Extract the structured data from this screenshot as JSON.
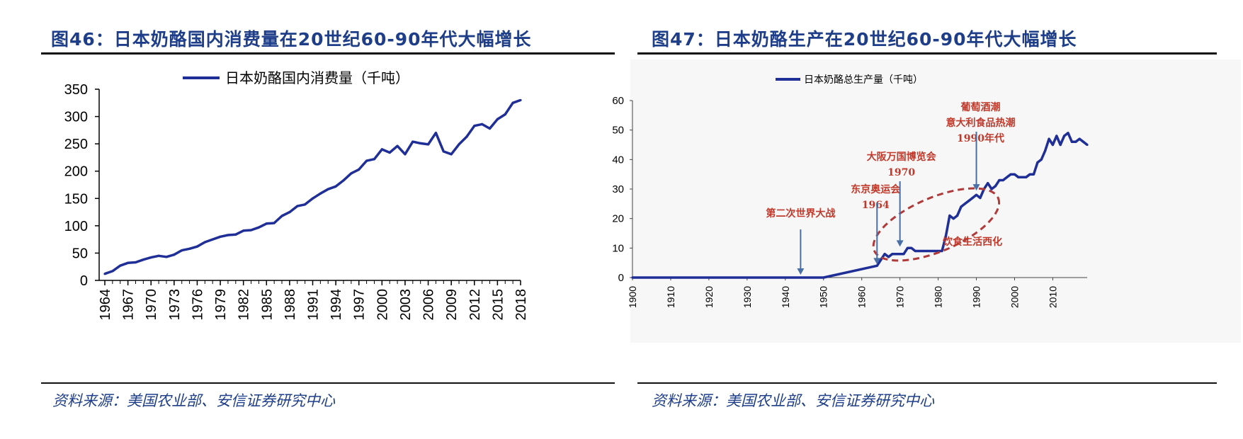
{
  "left": {
    "title": "图46：日本奶酪国内消费量在20世纪60-90年代大幅增长",
    "source": "资料来源：美国农业部、安信证券研究中心"
  },
  "right": {
    "title": "图47：日本奶酪生产在20世纪60-90年代大幅增长",
    "source": "资料来源：美国农业部、安信证券研究中心"
  },
  "chart_data": [
    {
      "type": "line",
      "legend": [
        "日本奶酪国内消费量（千吨）"
      ],
      "ylim": [
        0,
        350
      ],
      "yticks": [
        0,
        50,
        100,
        150,
        200,
        250,
        300,
        350
      ],
      "xtick_labels": [
        "1964",
        "1967",
        "1970",
        "1973",
        "1976",
        "1979",
        "1982",
        "1985",
        "1988",
        "1991",
        "1994",
        "1997",
        "2000",
        "2003",
        "2006",
        "2009",
        "2012",
        "2015",
        "2018"
      ],
      "grid": false,
      "color": "#1f2f97",
      "series": [
        {
          "name": "日本奶酪国内消费量（千吨）",
          "x": [
            1964,
            1965,
            1966,
            1967,
            1968,
            1969,
            1970,
            1971,
            1972,
            1973,
            1974,
            1975,
            1976,
            1977,
            1978,
            1979,
            1980,
            1981,
            1982,
            1983,
            1984,
            1985,
            1986,
            1987,
            1988,
            1989,
            1990,
            1991,
            1992,
            1993,
            1994,
            1995,
            1996,
            1997,
            1998,
            1999,
            2000,
            2001,
            2002,
            2003,
            2004,
            2005,
            2006,
            2007,
            2008,
            2009,
            2010,
            2011,
            2012,
            2013,
            2014,
            2015,
            2016,
            2017,
            2018
          ],
          "values": [
            12,
            17,
            27,
            32,
            33,
            38,
            42,
            45,
            43,
            47,
            55,
            58,
            62,
            70,
            75,
            80,
            83,
            84,
            91,
            92,
            97,
            104,
            105,
            118,
            125,
            136,
            139,
            150,
            159,
            167,
            172,
            183,
            196,
            203,
            219,
            222,
            240,
            234,
            246,
            231,
            254,
            251,
            249,
            270,
            236,
            231,
            249,
            263,
            283,
            286,
            278,
            295,
            304,
            325,
            330
          ]
        }
      ]
    },
    {
      "type": "line",
      "legend": [
        "日本奶酪总生产量（千吨）"
      ],
      "ylim": [
        0,
        60
      ],
      "yticks": [
        0,
        10,
        20,
        30,
        40,
        50,
        60
      ],
      "xtick_labels": [
        "1900",
        "1910",
        "1920",
        "1930",
        "1940",
        "1950",
        "1960",
        "1970",
        "1980",
        "1990",
        "2000",
        "2010"
      ],
      "grid": false,
      "color": "#1f2f97",
      "series": [
        {
          "name": "日本奶酪总生产量（千吨）",
          "x": [
            1900,
            1950,
            1964,
            1965,
            1966,
            1967,
            1968,
            1969,
            1970,
            1971,
            1972,
            1973,
            1974,
            1975,
            1976,
            1977,
            1978,
            1979,
            1980,
            1981,
            1982,
            1983,
            1984,
            1985,
            1986,
            1987,
            1988,
            1989,
            1990,
            1991,
            1992,
            1993,
            1994,
            1995,
            1996,
            1997,
            1998,
            1999,
            2000,
            2001,
            2002,
            2003,
            2004,
            2005,
            2006,
            2007,
            2008,
            2009,
            2010,
            2011,
            2012,
            2013,
            2014,
            2015,
            2016,
            2017,
            2018,
            2019
          ],
          "values": [
            0,
            0,
            4,
            6,
            8,
            7,
            8,
            8,
            8,
            8,
            10,
            10,
            9,
            9,
            9,
            9,
            9,
            9,
            9,
            9,
            14,
            21,
            20,
            21,
            24,
            25,
            26,
            27,
            28,
            27,
            30,
            32,
            30,
            31,
            33,
            33,
            34,
            35,
            35,
            34,
            34,
            34,
            35,
            35,
            39,
            40,
            43,
            47,
            45,
            48,
            45,
            48,
            49,
            46,
            46,
            47,
            46,
            45
          ]
        }
      ],
      "annotations": [
        {
          "label": [
            "第二次世界大战"
          ],
          "x": 1944
        },
        {
          "label": [
            "东京奥运会",
            "1964"
          ],
          "x": 1964
        },
        {
          "label": [
            "大阪万国博览会",
            "1970"
          ],
          "x": 1970
        },
        {
          "label": [
            "葡萄酒潮",
            "意大利食品热潮",
            "1990年代"
          ],
          "x": 1990
        },
        {
          "label": [
            "饮食生活西化"
          ]
        }
      ]
    }
  ]
}
